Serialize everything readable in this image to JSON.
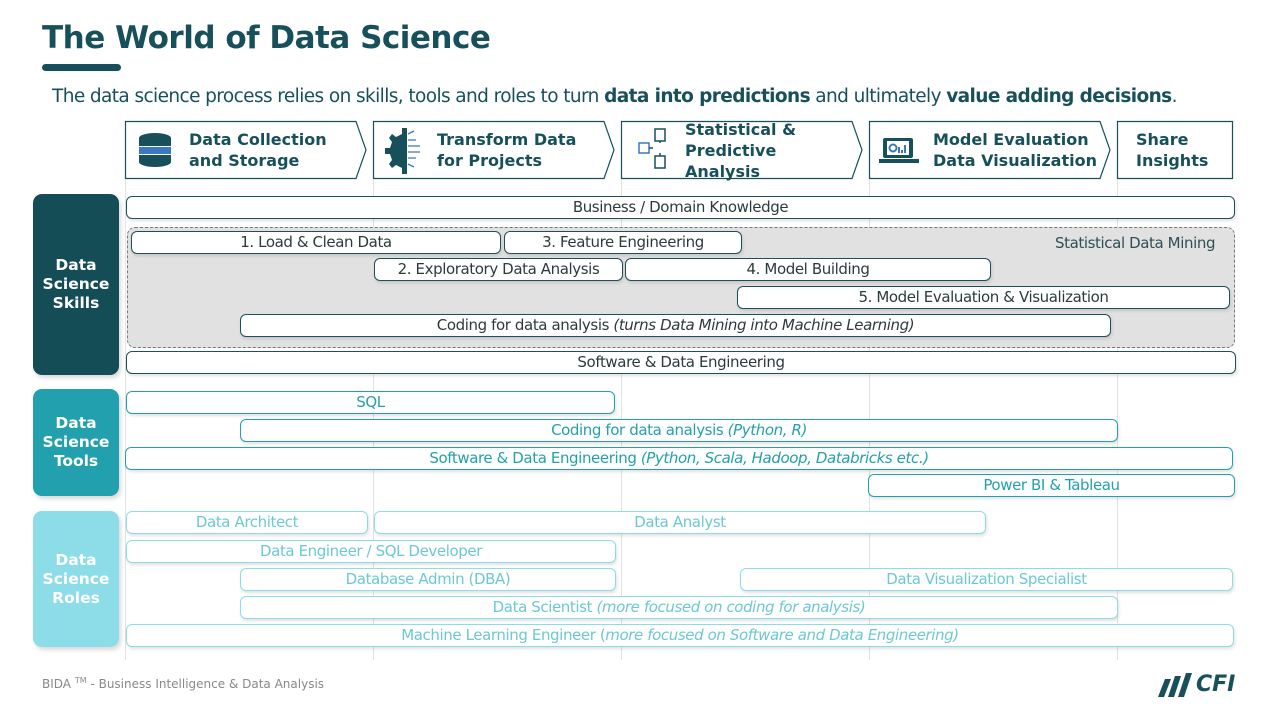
{
  "title": "The World of Data Science",
  "subtitle": {
    "part1": "The data science process relies on skills, tools and roles to turn ",
    "bold1": "data into predictions",
    "part2": " and ultimately ",
    "bold2": "value adding decisions",
    "part3": "."
  },
  "stages": [
    {
      "label": [
        "Data Collection",
        "and Storage"
      ],
      "icon": "database-icon"
    },
    {
      "label": [
        "Transform Data",
        "for Projects"
      ],
      "icon": "gear-circuit-icon"
    },
    {
      "label": [
        "Statistical  &",
        "Predictive",
        "Analysis"
      ],
      "icon": "table-hierarchy-icon"
    },
    {
      "label": [
        "Model Evaluation",
        "Data Visualization"
      ],
      "icon": "laptop-chart-icon"
    },
    {
      "label": [
        "Share",
        "Insights"
      ],
      "icon": ""
    }
  ],
  "categories": {
    "skills": [
      "Data",
      "Science",
      "Skills"
    ],
    "tools": [
      "Data",
      "Science",
      "Tools"
    ],
    "roles": [
      "Data",
      "Science",
      "Roles"
    ]
  },
  "colors": {
    "dark_teal": "#17505a",
    "skills": "#154d57",
    "tools": "#23a0ad",
    "roles": "#8ddde8",
    "mining_bg": "#e1e1e1"
  },
  "skills": {
    "business": "Business / Domain Knowledge",
    "mining_label": "Statistical Data Mining",
    "load": "1. Load & Clean Data",
    "eda": "2. Exploratory Data Analysis",
    "feature": "3. Feature Engineering",
    "model": "4. Model Building",
    "eval": "5. Model Evaluation & Visualization",
    "coding": "Coding for data analysis ",
    "coding_note": "(turns Data Mining into Machine Learning)",
    "software": "Software & Data Engineering"
  },
  "tools": {
    "sql": "SQL",
    "coding": "Coding for data analysis ",
    "coding_note": "(Python, R)",
    "software": "Software & Data Engineering ",
    "software_note": "(Python, Scala, Hadoop, Databricks etc.)",
    "bi": "Power BI & Tableau"
  },
  "roles": {
    "architect": "Data Architect",
    "analyst": "Data Analyst",
    "engineer": "Data Engineer / SQL Developer",
    "dba": "Database Admin (DBA)",
    "viz": "Data Visualization Specialist",
    "scientist": "Data Scientist ",
    "scientist_note": "(more focused on coding for analysis)",
    "ml": "Machine Learning Engineer (",
    "ml_note": "more focused on Software and Data Engineering)"
  },
  "footer": {
    "text1": "BIDA ",
    "tm": "TM",
    "text2": " - Business  Intelligence  & Data Analysis"
  },
  "logo": "CFI"
}
